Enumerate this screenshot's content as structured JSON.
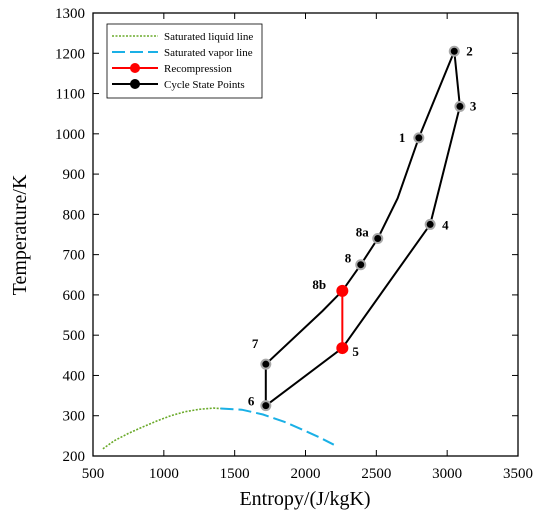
{
  "chart_data": {
    "type": "line",
    "xlabel": "Entropy/(J/kgK)",
    "ylabel": "Temperature/K",
    "xlim": [
      500,
      3500
    ],
    "ylim": [
      200,
      1300
    ],
    "xticks": [
      500,
      1000,
      1500,
      2000,
      2500,
      3000,
      3500
    ],
    "yticks": [
      200,
      300,
      400,
      500,
      600,
      700,
      800,
      900,
      1000,
      1100,
      1200,
      1300
    ],
    "grid": false,
    "legend_position": "top-left",
    "colors": {
      "saturated_liquid": "#6aaa2a",
      "saturated_vapor": "#1ab0e6",
      "recompression": "#ff0000",
      "cycle": "#000000",
      "marker_gray": "#a8a8a8"
    },
    "series": [
      {
        "name": "Saturated liquid line",
        "style": "dotted",
        "x": [
          570,
          650,
          750,
          850,
          950,
          1050,
          1150,
          1250,
          1350,
          1400
        ],
        "y": [
          218,
          238,
          256,
          272,
          287,
          300,
          310,
          316,
          319,
          318
        ]
      },
      {
        "name": "Saturated vapor line",
        "style": "dashed",
        "x": [
          1400,
          1550,
          1700,
          1850,
          2000,
          2100,
          2200
        ],
        "y": [
          318,
          315,
          303,
          285,
          262,
          246,
          228
        ]
      },
      {
        "name": "Recompression",
        "style": "solid",
        "marker": "filled-circle",
        "x": [
          2260,
          2260
        ],
        "y": [
          468,
          610
        ]
      },
      {
        "name": "Cycle State Points",
        "style": "solid",
        "marker": "filled-circle"
      }
    ],
    "cycle_path": {
      "x": [
        1720,
        1720,
        2120,
        2260,
        2390,
        2510,
        2650,
        2800,
        3050,
        3090,
        2880,
        2260,
        1720
      ],
      "y": [
        325,
        428,
        560,
        610,
        675,
        740,
        840,
        990,
        1205,
        1068,
        775,
        468,
        325
      ]
    },
    "state_points": [
      {
        "label": "1",
        "x": 2800,
        "y": 990
      },
      {
        "label": "2",
        "x": 3050,
        "y": 1205
      },
      {
        "label": "3",
        "x": 3090,
        "y": 1068
      },
      {
        "label": "4",
        "x": 2880,
        "y": 775
      },
      {
        "label": "5",
        "x": 2260,
        "y": 468
      },
      {
        "label": "6",
        "x": 1720,
        "y": 325
      },
      {
        "label": "7",
        "x": 1720,
        "y": 428
      },
      {
        "label": "8",
        "x": 2390,
        "y": 675
      },
      {
        "label": "8a",
        "x": 2510,
        "y": 740
      },
      {
        "label": "8b",
        "x": 2260,
        "y": 610
      }
    ]
  }
}
